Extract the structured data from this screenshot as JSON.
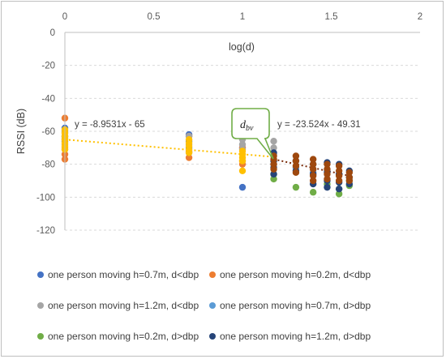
{
  "chart_data": {
    "type": "scatter",
    "title": "",
    "xlabel": "log(d)",
    "ylabel": "RSSI (dB)",
    "xlim": [
      0,
      2
    ],
    "ylim": [
      -120,
      0
    ],
    "x_ticks": [
      "0",
      "0.5",
      "1",
      "1.5",
      "2"
    ],
    "y_ticks": [
      "0",
      "-20",
      "-40",
      "-60",
      "-80",
      "-100",
      "-120"
    ],
    "x_axis_position": "top",
    "grid": "horizontal-dashed",
    "legend_position": "bottom",
    "series": [
      {
        "name": "one person moving h=0.7m, d<dbp",
        "color": "#4472c4",
        "points": [
          [
            0,
            -58
          ],
          [
            0,
            -60
          ],
          [
            0,
            -63
          ],
          [
            0,
            -66
          ],
          [
            0.699,
            -62
          ],
          [
            0.699,
            -66
          ],
          [
            0.699,
            -70
          ],
          [
            1,
            -70
          ],
          [
            1,
            -94
          ]
        ]
      },
      {
        "name": "one person moving h=0.2m, d<dbp",
        "color": "#ed7d31",
        "points": [
          [
            0,
            -52
          ],
          [
            0,
            -65
          ],
          [
            0,
            -70
          ],
          [
            0,
            -74
          ],
          [
            0,
            -77
          ],
          [
            0.699,
            -63
          ],
          [
            0.699,
            -72
          ],
          [
            0.699,
            -76
          ],
          [
            1,
            -63
          ],
          [
            1,
            -70
          ],
          [
            1,
            -78
          ],
          [
            1,
            -80
          ]
        ]
      },
      {
        "name": "one person moving h=1.2m, d<dbp",
        "color": "#a5a5a5",
        "points": [
          [
            0,
            -61
          ],
          [
            0,
            -64
          ],
          [
            0,
            -68
          ],
          [
            0,
            -71
          ],
          [
            0.699,
            -63
          ],
          [
            0.699,
            -68
          ],
          [
            0.699,
            -73
          ],
          [
            1,
            -56
          ],
          [
            1,
            -59
          ],
          [
            1,
            -62
          ],
          [
            1,
            -65
          ],
          [
            1,
            -68
          ],
          [
            1,
            -71
          ],
          [
            1.176,
            -66
          ],
          [
            1.176,
            -70
          ],
          [
            1.176,
            -74
          ]
        ]
      },
      {
        "name": "one person moving h=0.7m, d>dbp",
        "color": "#5b9bd5",
        "points": [
          [
            1.176,
            -80
          ],
          [
            1.301,
            -82
          ],
          [
            1.398,
            -85
          ],
          [
            1.477,
            -84
          ],
          [
            1.544,
            -86
          ],
          [
            1.602,
            -88
          ]
        ]
      },
      {
        "name": "one person moving h=0.2m, d>dbp",
        "color": "#70ad47",
        "points": [
          [
            1.176,
            -86
          ],
          [
            1.176,
            -89
          ],
          [
            1.301,
            -94
          ],
          [
            1.398,
            -97
          ],
          [
            1.477,
            -92
          ],
          [
            1.544,
            -98
          ],
          [
            1.544,
            -95
          ],
          [
            1.602,
            -93
          ],
          [
            1.602,
            -90
          ]
        ]
      },
      {
        "name": "one person moving h=1.2m, d>dbp",
        "color": "#264478",
        "points": [
          [
            1.176,
            -73
          ],
          [
            1.176,
            -78
          ],
          [
            1.176,
            -82
          ],
          [
            1.176,
            -86
          ],
          [
            1.301,
            -78
          ],
          [
            1.301,
            -84
          ],
          [
            1.398,
            -80
          ],
          [
            1.398,
            -86
          ],
          [
            1.398,
            -92
          ],
          [
            1.477,
            -79
          ],
          [
            1.477,
            -85
          ],
          [
            1.477,
            -90
          ],
          [
            1.477,
            -94
          ],
          [
            1.544,
            -80
          ],
          [
            1.544,
            -86
          ],
          [
            1.544,
            -91
          ],
          [
            1.544,
            -95
          ],
          [
            1.602,
            -84
          ],
          [
            1.602,
            -88
          ],
          [
            1.602,
            -92
          ]
        ]
      },
      {
        "name": "",
        "color": "#ffc000",
        "points": [
          [
            0,
            -59
          ],
          [
            0,
            -61
          ],
          [
            0,
            -63
          ],
          [
            0,
            -65
          ],
          [
            0,
            -67
          ],
          [
            0,
            -69
          ],
          [
            0,
            -71
          ],
          [
            0.699,
            -65
          ],
          [
            0.699,
            -67
          ],
          [
            0.699,
            -69
          ],
          [
            0.699,
            -71
          ],
          [
            0.699,
            -73
          ],
          [
            1,
            -72
          ],
          [
            1,
            -74
          ],
          [
            1,
            -76
          ],
          [
            1,
            -78
          ],
          [
            1,
            -84
          ]
        ]
      },
      {
        "name": "",
        "color": "#9e480e",
        "points": [
          [
            1.176,
            -75
          ],
          [
            1.176,
            -77
          ],
          [
            1.176,
            -80
          ],
          [
            1.176,
            -83
          ],
          [
            1.301,
            -75
          ],
          [
            1.301,
            -78
          ],
          [
            1.301,
            -81
          ],
          [
            1.301,
            -85
          ],
          [
            1.398,
            -77
          ],
          [
            1.398,
            -80
          ],
          [
            1.398,
            -83
          ],
          [
            1.398,
            -87
          ],
          [
            1.398,
            -90
          ],
          [
            1.477,
            -80
          ],
          [
            1.477,
            -83
          ],
          [
            1.477,
            -86
          ],
          [
            1.477,
            -89
          ],
          [
            1.544,
            -81
          ],
          [
            1.544,
            -84
          ],
          [
            1.544,
            -87
          ],
          [
            1.544,
            -90
          ],
          [
            1.602,
            -85
          ],
          [
            1.602,
            -88
          ],
          [
            1.602,
            -90
          ]
        ]
      }
    ],
    "trendlines": [
      {
        "label": "y = -8.9531x - 65",
        "slope": -8.9531,
        "intercept": -65,
        "x_range": [
          0,
          1.176
        ],
        "color": "#ffc000"
      },
      {
        "label": "y = -23.524x - 49.31",
        "slope": -23.524,
        "intercept": -49.31,
        "x_range": [
          1.176,
          1.602
        ],
        "color": "#7b2c0b"
      }
    ],
    "annotation": {
      "label": "d",
      "subscript": "bv",
      "at": [
        1.176,
        -80
      ]
    }
  }
}
